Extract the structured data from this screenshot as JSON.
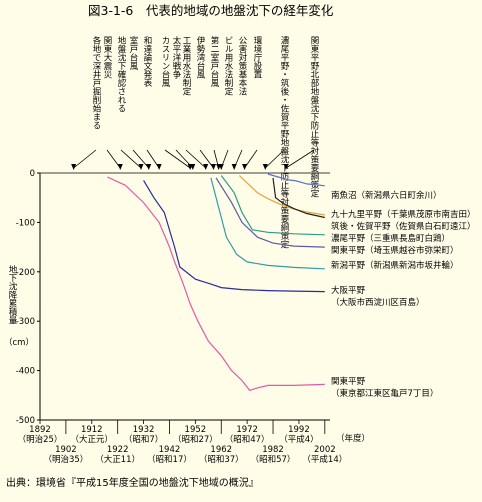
{
  "chart_data": {
    "type": "line",
    "title": "図3-1-6　代表的地域の地盤沈下の経年変化",
    "xlabel": "（年度）",
    "ylabel": "地下沈降累積量",
    "yunit": "（cm）",
    "xlim": [
      1892,
      2004
    ],
    "ylim": [
      -500,
      0
    ],
    "grid": false,
    "legend": "right of each line end",
    "x_ticks": [
      {
        "year": 1892,
        "era": "（明治25）",
        "row": 0
      },
      {
        "year": 1902,
        "era": "（明治35）",
        "row": 1
      },
      {
        "year": 1912,
        "era": "（大正元）",
        "row": 0
      },
      {
        "year": 1922,
        "era": "（大正11）",
        "row": 1
      },
      {
        "year": 1932,
        "era": "（昭和7）",
        "row": 0
      },
      {
        "year": 1942,
        "era": "（昭和17）",
        "row": 1
      },
      {
        "year": 1952,
        "era": "（昭和27）",
        "row": 0
      },
      {
        "year": 1962,
        "era": "（昭和37）",
        "row": 1
      },
      {
        "year": 1972,
        "era": "（昭和47）",
        "row": 0
      },
      {
        "year": 1982,
        "era": "（昭和57）",
        "row": 1
      },
      {
        "year": 1992,
        "era": "（平成4）",
        "row": 0
      },
      {
        "year": 2002,
        "era": "（平成14）",
        "row": 1
      }
    ],
    "y_ticks": [
      0,
      -100,
      -200,
      -300,
      -400,
      -500
    ],
    "series": [
      {
        "name": "南魚沼（新潟県六日町余川）",
        "color": "#5b72c8",
        "points": [
          [
            1980,
            -2
          ],
          [
            1984,
            -8
          ],
          [
            1988,
            -14
          ],
          [
            1991,
            -16
          ],
          [
            1995,
            -22
          ],
          [
            1999,
            -24
          ],
          [
            2002,
            -26
          ]
        ]
      },
      {
        "name": "九十九里平野（千葉県茂原市南吉田）",
        "color": "#e8a33a",
        "points": [
          [
            1969,
            -5
          ],
          [
            1972,
            -20
          ],
          [
            1976,
            -40
          ],
          [
            1980,
            -52
          ],
          [
            1985,
            -64
          ],
          [
            1990,
            -73
          ],
          [
            1995,
            -79
          ],
          [
            2002,
            -85
          ]
        ]
      },
      {
        "name": "筑後・佐賀平野（佐賀県白石町遠江）",
        "color": "#222222",
        "points": [
          [
            1982,
            -10
          ],
          [
            1983,
            -50
          ],
          [
            1986,
            -62
          ],
          [
            1990,
            -72
          ],
          [
            1995,
            -82
          ],
          [
            2002,
            -90
          ]
        ]
      },
      {
        "name": "濃尾平野（三重県長島町白鶏）",
        "color": "#2a9a8a",
        "points": [
          [
            1962,
            -5
          ],
          [
            1967,
            -40
          ],
          [
            1970,
            -80
          ],
          [
            1974,
            -115
          ],
          [
            1980,
            -120
          ],
          [
            1990,
            -123
          ],
          [
            2002,
            -125
          ]
        ]
      },
      {
        "name": "関東平野（埼玉県越谷市弥栄町）",
        "color": "#5a5aa8",
        "points": [
          [
            1960,
            -10
          ],
          [
            1966,
            -60
          ],
          [
            1970,
            -100
          ],
          [
            1976,
            -130
          ],
          [
            1982,
            -142
          ],
          [
            1990,
            -148
          ],
          [
            2002,
            -150
          ]
        ]
      },
      {
        "name": "新潟平野（新潟県新潟市坂井輪）",
        "color": "#2f9ca8",
        "points": [
          [
            1958,
            -10
          ],
          [
            1961,
            -70
          ],
          [
            1964,
            -130
          ],
          [
            1968,
            -165
          ],
          [
            1972,
            -180
          ],
          [
            1980,
            -187
          ],
          [
            1990,
            -191
          ],
          [
            2002,
            -194
          ]
        ]
      },
      {
        "name": "大阪平野（大阪市西淀川区百島）",
        "color": "#2a2aa0",
        "points": [
          [
            1932,
            -15
          ],
          [
            1936,
            -50
          ],
          [
            1940,
            -80
          ],
          [
            1944,
            -150
          ],
          [
            1946,
            -190
          ],
          [
            1952,
            -215
          ],
          [
            1958,
            -225
          ],
          [
            1962,
            -232
          ],
          [
            1970,
            -236
          ],
          [
            1980,
            -238
          ],
          [
            1990,
            -239
          ],
          [
            2002,
            -240
          ]
        ]
      },
      {
        "name": "関東平野（東京都江東区亀戸7丁目）",
        "color": "#e05aa8",
        "points": [
          [
            1918,
            -8
          ],
          [
            1925,
            -25
          ],
          [
            1932,
            -60
          ],
          [
            1938,
            -100
          ],
          [
            1942,
            -150
          ],
          [
            1944,
            -180
          ],
          [
            1947,
            -220
          ],
          [
            1950,
            -265
          ],
          [
            1953,
            -300
          ],
          [
            1957,
            -340
          ],
          [
            1962,
            -370
          ],
          [
            1966,
            -400
          ],
          [
            1970,
            -420
          ],
          [
            1973,
            -440
          ],
          [
            1976,
            -435
          ],
          [
            1980,
            -430
          ],
          [
            1990,
            -430
          ],
          [
            2002,
            -428
          ]
        ]
      }
    ],
    "events": [
      {
        "year": 1905,
        "text": "各地で深井戸掘削始まる"
      },
      {
        "year": 1923,
        "text": "関東大震災"
      },
      {
        "year": 1931,
        "text": "地盤沈下確認される"
      },
      {
        "year": 1934,
        "text": "室戸台風"
      },
      {
        "year": 1938,
        "text": "和達論文発表"
      },
      {
        "year": 1950,
        "text": "カスリン台風"
      },
      {
        "year": 1951,
        "text": "太平洋戦争"
      },
      {
        "year": 1956,
        "text": "工業用水法制定"
      },
      {
        "year": 1959,
        "text": "伊勢湾台風"
      },
      {
        "year": 1961,
        "text": "第二室戸台風"
      },
      {
        "year": 1962,
        "text": "ビル用水法制定"
      },
      {
        "year": 1967,
        "text": "公害対策基本法"
      },
      {
        "year": 1971,
        "text": "環境庁設置"
      },
      {
        "year": 1979,
        "text": "濃尾平野・筑後・佐賀平野地盤沈下防止等対策要綱策定"
      },
      {
        "year": 1987,
        "text": "関東平野北部地盤沈下防止等対策要綱策定"
      }
    ],
    "source": "出典：環境省『平成15年度全国の地盤沈下地域の概況』"
  }
}
